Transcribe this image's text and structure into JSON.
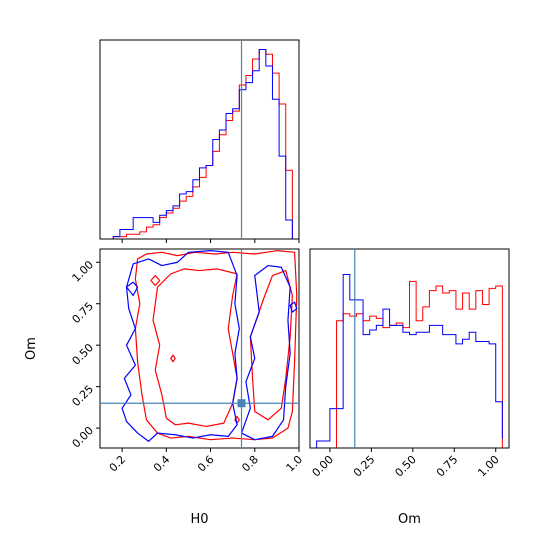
{
  "chart_data": {
    "type": "corner",
    "parameters": [
      "H0",
      "Om"
    ],
    "truths": {
      "H0": 0.74,
      "Om": 0.15
    },
    "colors": {
      "series_a": "#ff0000",
      "series_b": "#0000ff",
      "truth": "#4682b4"
    },
    "grid": false,
    "legend": "none",
    "panels": [
      {
        "id": "hist-H0",
        "kind": "histogram",
        "xlim": [
          0.1,
          1.0
        ],
        "xticks": [
          0.2,
          0.4,
          0.6,
          0.8,
          1.0
        ],
        "xtick_labels": [
          "0.2",
          "0.4",
          "0.6",
          "0.8",
          "1.0"
        ],
        "show_xtick_labels": false,
        "show_yticks": false,
        "ylim": [
          0,
          84
        ],
        "series": [
          {
            "color": "#ff0000",
            "bins": [
              0.13,
              0.16,
              0.19,
              0.22,
              0.25,
              0.28,
              0.31,
              0.34,
              0.37,
              0.4,
              0.43,
              0.46,
              0.49,
              0.52,
              0.55,
              0.58,
              0.61,
              0.64,
              0.67,
              0.7,
              0.73,
              0.76,
              0.79,
              0.82,
              0.85,
              0.88,
              0.91,
              0.94,
              0.97,
              1.0
            ],
            "counts": [
              0,
              1,
              1,
              2,
              2,
              3,
              5,
              6,
              9,
              11,
              13,
              16,
              18,
              22,
              26,
              31,
              37,
              44,
              50,
              54,
              65,
              69,
              76,
              80,
              78,
              70,
              57,
              29,
              0
            ]
          },
          {
            "color": "#0000ff",
            "bins": [
              0.13,
              0.16,
              0.19,
              0.22,
              0.25,
              0.28,
              0.31,
              0.34,
              0.37,
              0.4,
              0.43,
              0.46,
              0.49,
              0.52,
              0.55,
              0.58,
              0.61,
              0.64,
              0.67,
              0.7,
              0.73,
              0.76,
              0.79,
              0.82,
              0.85,
              0.88,
              0.91,
              0.94,
              0.97,
              1.0
            ],
            "counts": [
              0,
              1,
              4,
              4,
              9,
              9,
              9,
              7,
              10,
              12,
              14,
              19,
              20,
              25,
              30,
              31,
              42,
              46,
              53,
              55,
              63,
              66,
              71,
              80,
              73,
              59,
              35,
              8,
              0
            ]
          }
        ]
      },
      {
        "id": "hist-Om",
        "kind": "histogram",
        "xlim": [
          -0.12,
          1.08
        ],
        "xticks": [
          0.0,
          0.25,
          0.5,
          0.75,
          1.0
        ],
        "xtick_labels": [
          "0.00",
          "0.25",
          "0.50",
          "0.75",
          "1.00"
        ],
        "show_xtick_labels": true,
        "show_yticks": false,
        "ylim": [
          0,
          86
        ],
        "series": [
          {
            "color": "#ff0000",
            "bins": [
              -0.08,
              -0.04,
              0.0,
              0.04,
              0.08,
              0.12,
              0.16,
              0.2,
              0.24,
              0.28,
              0.32,
              0.36,
              0.4,
              0.44,
              0.48,
              0.52,
              0.56,
              0.6,
              0.64,
              0.68,
              0.72,
              0.76,
              0.8,
              0.84,
              0.88,
              0.92,
              0.96,
              1.0,
              1.04
            ],
            "counts": [
              0,
              0,
              0,
              55,
              58,
              57,
              58,
              55,
              57,
              56,
              52,
              53,
              54,
              52,
              72,
              55,
              61,
              68,
              70,
              67,
              68,
              60,
              67,
              60,
              68,
              62,
              69,
              70,
              0
            ]
          },
          {
            "color": "#0000ff",
            "bins": [
              -0.08,
              -0.04,
              0.0,
              0.04,
              0.08,
              0.12,
              0.16,
              0.2,
              0.24,
              0.28,
              0.32,
              0.36,
              0.4,
              0.44,
              0.48,
              0.52,
              0.56,
              0.6,
              0.64,
              0.68,
              0.72,
              0.76,
              0.8,
              0.84,
              0.88,
              0.92,
              0.96,
              1.0,
              1.04
            ],
            "counts": [
              3,
              3,
              17,
              17,
              75,
              64,
              64,
              49,
              51,
              53,
              60,
              53,
              53,
              50,
              49,
              50,
              50,
              53,
              53,
              49,
              49,
              45,
              47,
              50,
              46,
              46,
              45,
              20,
              4
            ]
          }
        ]
      },
      {
        "id": "contour-H0-Om",
        "kind": "contour",
        "xlim": [
          0.1,
          1.0
        ],
        "ylim": [
          -0.12,
          1.08
        ],
        "xticks": [
          0.2,
          0.4,
          0.6,
          0.8,
          1.0
        ],
        "xtick_labels": [
          "0.2",
          "0.4",
          "0.6",
          "0.8",
          "1.0"
        ],
        "yticks": [
          0.0,
          0.25,
          0.5,
          0.75,
          1.0
        ],
        "ytick_labels": [
          "0.00",
          "0.25",
          "0.50",
          "0.75",
          "1.00"
        ],
        "xlabel": "H0",
        "ylabel": "Om",
        "series": [
          {
            "color": "#ff0000",
            "contours": [
              [
                [
                  0.27,
                  1.02
                ],
                [
                  0.31,
                  1.05
                ],
                [
                  0.38,
                  1.06
                ],
                [
                  0.45,
                  1.04
                ],
                [
                  0.53,
                  1.06
                ],
                [
                  0.62,
                  1.05
                ],
                [
                  0.7,
                  1.06
                ],
                [
                  0.8,
                  1.05
                ],
                [
                  0.9,
                  1.07
                ],
                [
                  0.98,
                  1.06
                ],
                [
                  0.99,
                  0.8
                ],
                [
                  0.98,
                  0.4
                ],
                [
                  0.97,
                  0.1
                ],
                [
                  0.95,
                  0.0
                ],
                [
                  0.88,
                  -0.06
                ],
                [
                  0.8,
                  -0.07
                ],
                [
                  0.7,
                  -0.06
                ],
                [
                  0.6,
                  -0.07
                ],
                [
                  0.5,
                  -0.05
                ],
                [
                  0.42,
                  -0.06
                ],
                [
                  0.36,
                  -0.03
                ],
                [
                  0.31,
                  0.05
                ],
                [
                  0.29,
                  0.2
                ],
                [
                  0.27,
                  0.4
                ],
                [
                  0.26,
                  0.6
                ],
                [
                  0.28,
                  0.75
                ],
                [
                  0.26,
                  0.9
                ],
                [
                  0.27,
                  1.02
                ]
              ],
              [
                [
                  0.36,
                  0.85
                ],
                [
                  0.42,
                  0.93
                ],
                [
                  0.48,
                  0.96
                ],
                [
                  0.55,
                  0.95
                ],
                [
                  0.63,
                  0.96
                ],
                [
                  0.72,
                  0.93
                ],
                [
                  0.7,
                  0.8
                ],
                [
                  0.68,
                  0.6
                ],
                [
                  0.7,
                  0.45
                ],
                [
                  0.72,
                  0.3
                ],
                [
                  0.7,
                  0.15
                ],
                [
                  0.66,
                  0.03
                ],
                [
                  0.58,
                  0.01
                ],
                [
                  0.5,
                  0.03
                ],
                [
                  0.44,
                  0.02
                ],
                [
                  0.4,
                  0.06
                ],
                [
                  0.38,
                  0.2
                ],
                [
                  0.35,
                  0.35
                ],
                [
                  0.37,
                  0.5
                ],
                [
                  0.34,
                  0.65
                ],
                [
                  0.36,
                  0.85
                ]
              ],
              [
                [
                  0.78,
                  0.55
                ],
                [
                  0.84,
                  0.78
                ],
                [
                  0.88,
                  0.92
                ],
                [
                  0.94,
                  0.95
                ],
                [
                  0.97,
                  0.8
                ],
                [
                  0.96,
                  0.55
                ],
                [
                  0.94,
                  0.3
                ],
                [
                  0.92,
                  0.12
                ],
                [
                  0.86,
                  0.05
                ],
                [
                  0.8,
                  0.1
                ],
                [
                  0.79,
                  0.3
                ],
                [
                  0.78,
                  0.55
                ]
              ],
              [
                [
                  0.33,
                  0.89
                ],
                [
                  0.35,
                  0.92
                ],
                [
                  0.37,
                  0.89
                ],
                [
                  0.35,
                  0.86
                ],
                [
                  0.33,
                  0.89
                ]
              ],
              [
                [
                  0.42,
                  0.42
                ],
                [
                  0.43,
                  0.44
                ],
                [
                  0.44,
                  0.42
                ],
                [
                  0.43,
                  0.4
                ],
                [
                  0.42,
                  0.42
                ]
              ],
              [
                [
                  0.71,
                  0.05
                ],
                [
                  0.72,
                  0.07
                ],
                [
                  0.73,
                  0.05
                ],
                [
                  0.72,
                  0.03
                ],
                [
                  0.71,
                  0.05
                ]
              ]
            ]
          },
          {
            "color": "#0000ff",
            "contours": [
              [
                [
                  0.22,
                  0.85
                ],
                [
                  0.25,
                  0.99
                ],
                [
                  0.32,
                  1.02
                ],
                [
                  0.38,
                  0.98
                ],
                [
                  0.45,
                  1.0
                ],
                [
                  0.5,
                  1.06
                ],
                [
                  0.6,
                  1.07
                ],
                [
                  0.68,
                  1.06
                ],
                [
                  0.72,
                  0.92
                ],
                [
                  0.71,
                  0.75
                ],
                [
                  0.73,
                  0.6
                ],
                [
                  0.71,
                  0.45
                ],
                [
                  0.72,
                  0.3
                ],
                [
                  0.7,
                  0.15
                ],
                [
                  0.72,
                  0.02
                ],
                [
                  0.68,
                  -0.05
                ],
                [
                  0.6,
                  -0.04
                ],
                [
                  0.52,
                  -0.06
                ],
                [
                  0.44,
                  -0.04
                ],
                [
                  0.36,
                  -0.03
                ],
                [
                  0.32,
                  -0.08
                ],
                [
                  0.27,
                  -0.03
                ],
                [
                  0.22,
                  0.04
                ],
                [
                  0.2,
                  0.12
                ],
                [
                  0.24,
                  0.2
                ],
                [
                  0.21,
                  0.3
                ],
                [
                  0.26,
                  0.38
                ],
                [
                  0.22,
                  0.5
                ],
                [
                  0.26,
                  0.6
                ],
                [
                  0.23,
                  0.72
                ],
                [
                  0.22,
                  0.85
                ]
              ],
              [
                [
                  0.8,
                  0.92
                ],
                [
                  0.86,
                  0.98
                ],
                [
                  0.92,
                  0.97
                ],
                [
                  0.96,
                  0.85
                ],
                [
                  0.95,
                  0.65
                ],
                [
                  0.96,
                  0.45
                ],
                [
                  0.94,
                  0.25
                ],
                [
                  0.93,
                  0.05
                ],
                [
                  0.88,
                  -0.05
                ],
                [
                  0.8,
                  -0.07
                ],
                [
                  0.74,
                  -0.03
                ],
                [
                  0.78,
                  0.12
                ],
                [
                  0.76,
                  0.28
                ],
                [
                  0.8,
                  0.42
                ],
                [
                  0.78,
                  0.55
                ],
                [
                  0.82,
                  0.7
                ],
                [
                  0.8,
                  0.92
                ]
              ],
              [
                [
                  0.22,
                  0.85
                ],
                [
                  0.25,
                  0.88
                ],
                [
                  0.27,
                  0.85
                ],
                [
                  0.25,
                  0.8
                ],
                [
                  0.22,
                  0.85
                ]
              ],
              [
                [
                  0.96,
                  0.74
                ],
                [
                  0.98,
                  0.76
                ],
                [
                  0.99,
                  0.72
                ],
                [
                  0.97,
                  0.7
                ],
                [
                  0.96,
                  0.74
                ]
              ]
            ]
          }
        ]
      }
    ]
  }
}
